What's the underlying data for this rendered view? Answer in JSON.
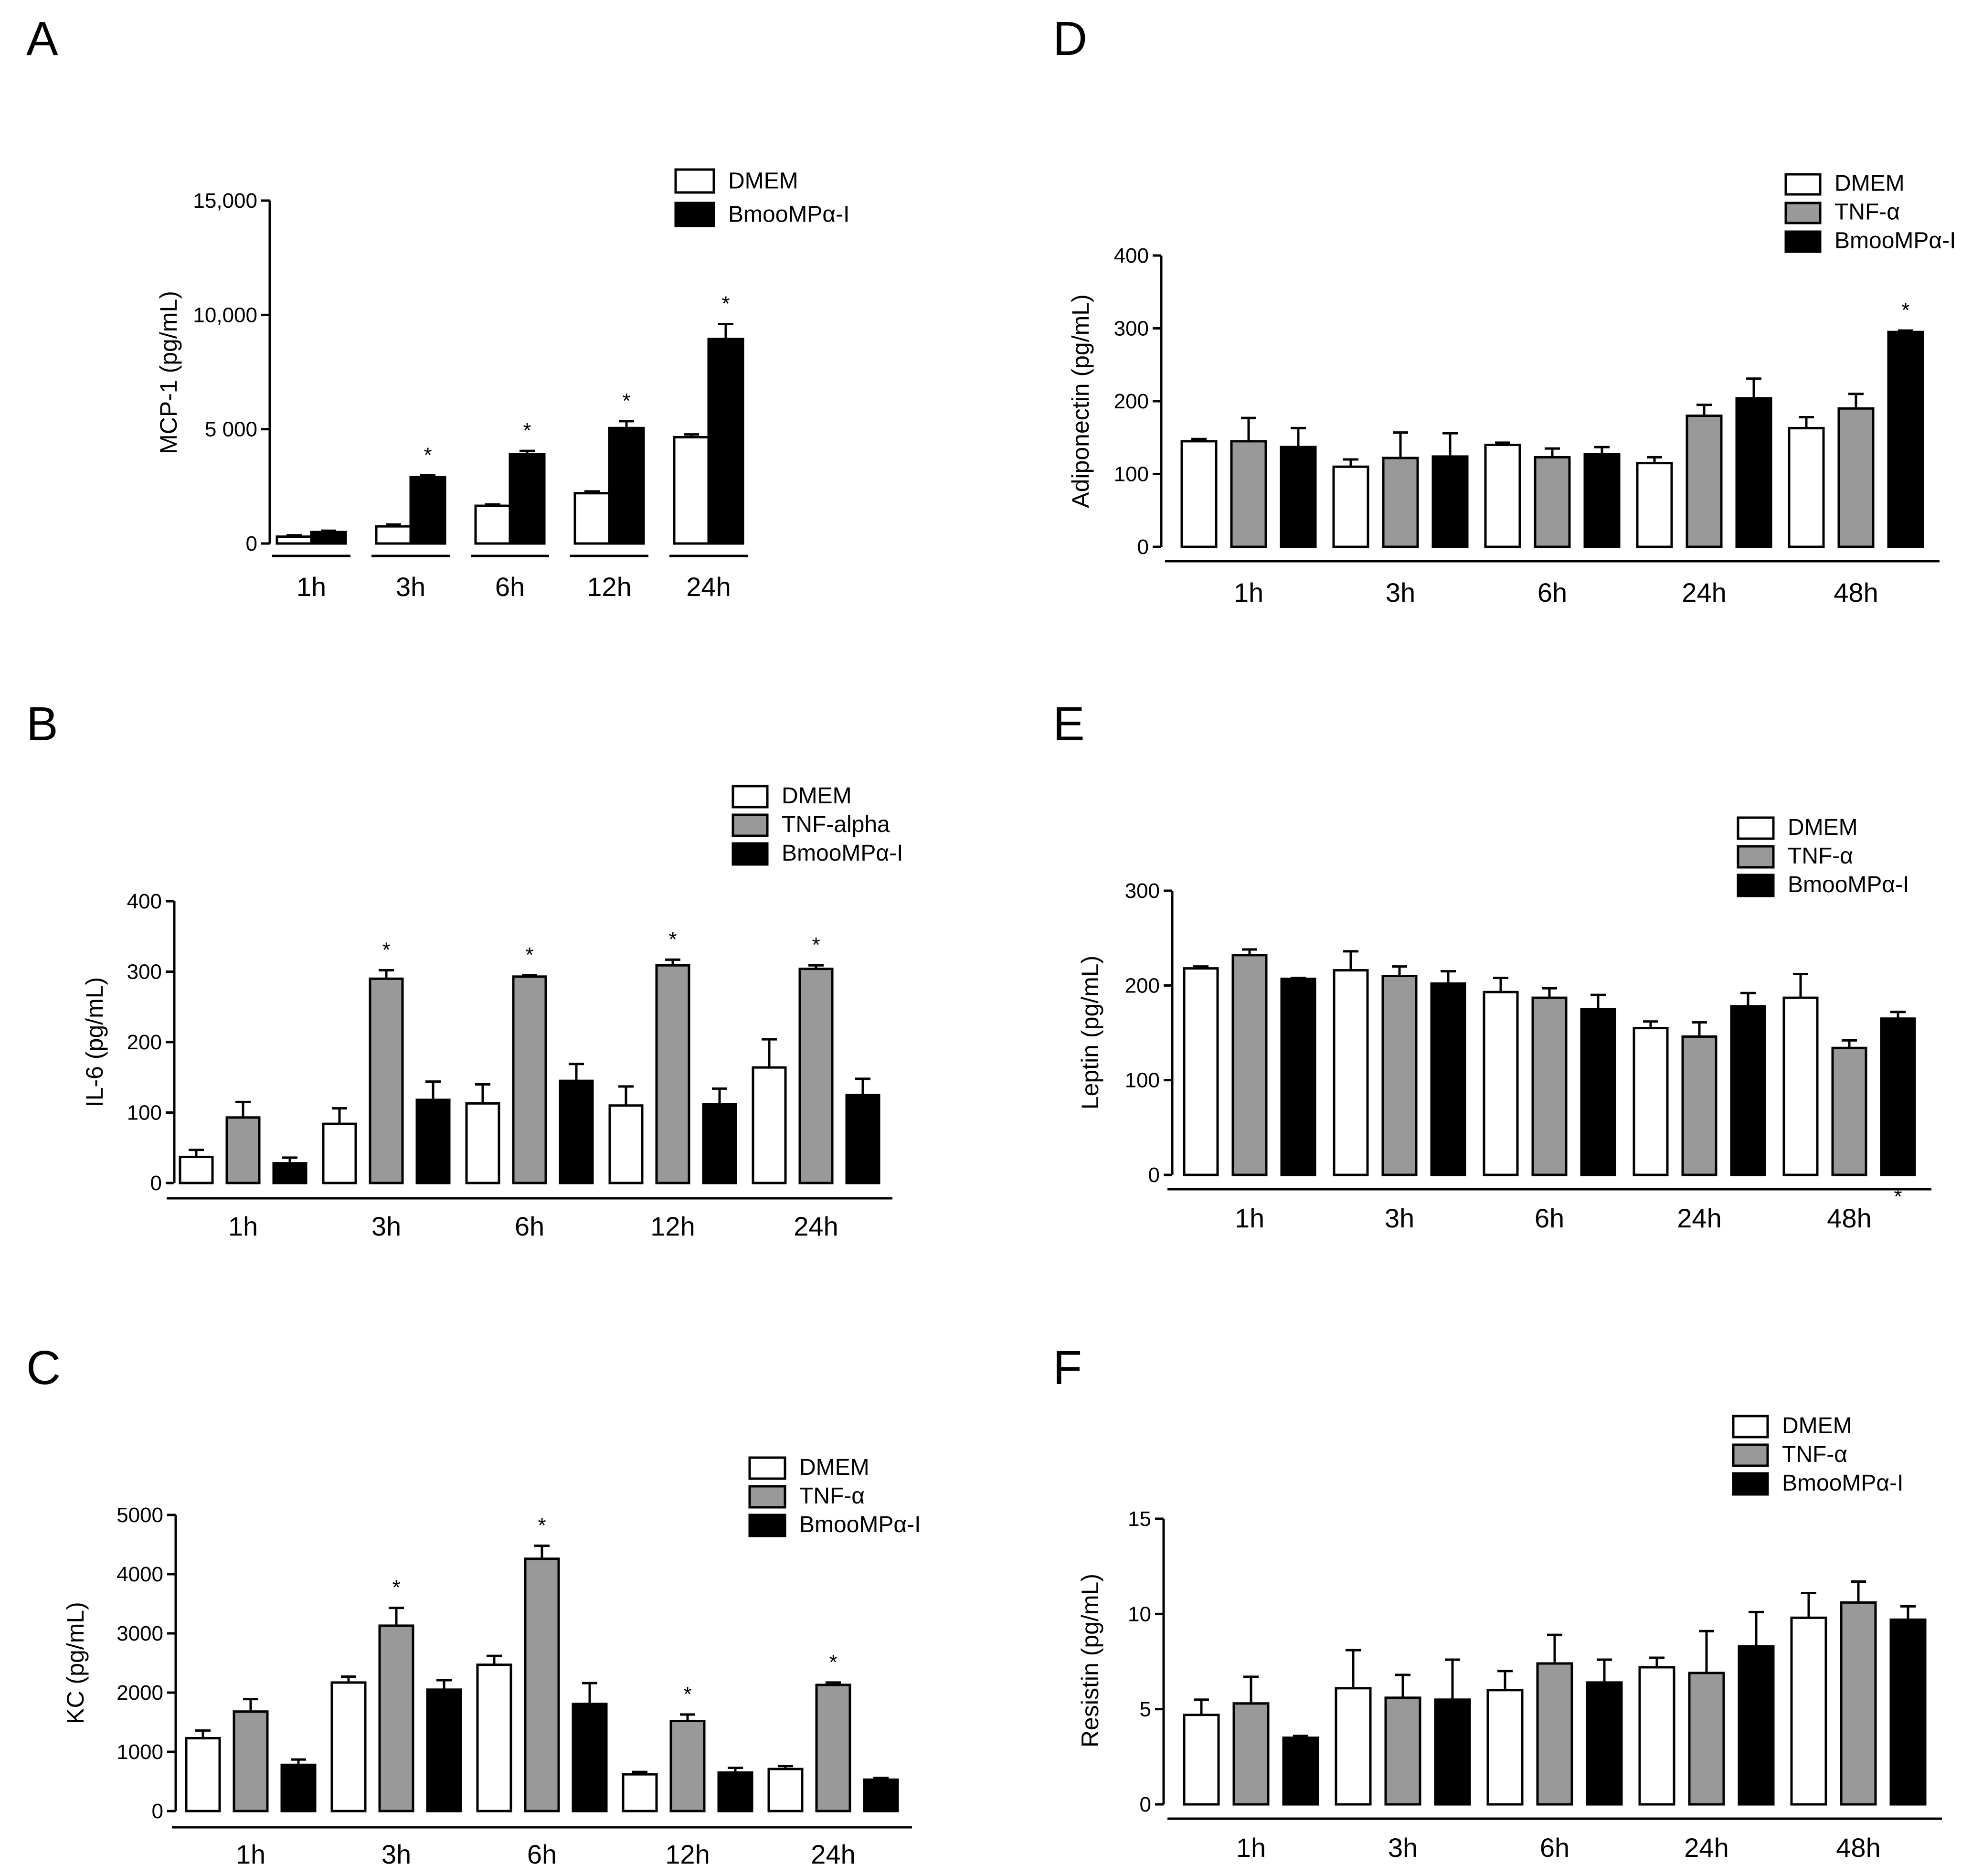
{
  "figure": {
    "colors": {
      "DMEM": "#ffffff",
      "TNF": "#999999",
      "BMOO": "#000000",
      "axis": "#000000"
    }
  },
  "chart_data": [
    {
      "panel": "A",
      "type": "bar",
      "title": "",
      "ylabel": "MCP-1 (pg/mL)",
      "xlabel": "",
      "ylim": [
        0,
        15000
      ],
      "yticks": [
        0,
        5000,
        10000,
        15000
      ],
      "ytick_labels": [
        "0",
        "5 000",
        "10,000",
        "15,000"
      ],
      "categories": [
        "1h",
        "3h",
        "6h",
        "12h",
        "24h"
      ],
      "series": [
        {
          "name": "DMEM",
          "key": "DMEM",
          "values": [
            300,
            750,
            1650,
            2200,
            4650
          ],
          "errors": [
            60,
            80,
            60,
            80,
            120
          ]
        },
        {
          "name": "BmooMPα-I",
          "key": "BMOO",
          "values": [
            500,
            2900,
            3900,
            5050,
            8950
          ],
          "errors": [
            60,
            80,
            150,
            300,
            650
          ]
        }
      ],
      "stars": [
        [
          1,
          1
        ],
        [
          1,
          2
        ],
        [
          1,
          3
        ],
        [
          1,
          4
        ]
      ],
      "legend": [
        "DMEM",
        "BmooMPα-I"
      ]
    },
    {
      "panel": "B",
      "type": "bar",
      "title": "",
      "ylabel": "IL-6 (pg/mL)",
      "xlabel": "",
      "ylim": [
        0,
        400
      ],
      "yticks": [
        0,
        100,
        200,
        300,
        400
      ],
      "ytick_labels": [
        "0",
        "100",
        "200",
        "300",
        "400"
      ],
      "categories": [
        "1h",
        "3h",
        "6h",
        "12h",
        "24h"
      ],
      "series": [
        {
          "name": "DMEM",
          "key": "DMEM",
          "values": [
            37,
            84,
            113,
            110,
            164
          ],
          "errors": [
            10,
            22,
            27,
            27,
            40
          ]
        },
        {
          "name": "TNF-alpha",
          "key": "TNF",
          "values": [
            93,
            290,
            293,
            309,
            304
          ],
          "errors": [
            22,
            12,
            2,
            8,
            5
          ]
        },
        {
          "name": "BmooMPα-I",
          "key": "BMOO",
          "values": [
            28,
            118,
            145,
            112,
            125
          ],
          "errors": [
            8,
            26,
            24,
            22,
            23
          ]
        }
      ],
      "stars": [
        [
          1,
          1
        ],
        [
          1,
          2
        ],
        [
          1,
          3
        ],
        [
          1,
          4
        ]
      ],
      "legend": [
        "DMEM",
        "TNF-alpha",
        "BmooMPα-I"
      ]
    },
    {
      "panel": "C",
      "type": "bar",
      "title": "",
      "ylabel": "KC (pg/mL)",
      "xlabel": "",
      "ylim": [
        0,
        5000
      ],
      "yticks": [
        0,
        1000,
        2000,
        3000,
        4000,
        5000
      ],
      "ytick_labels": [
        "0",
        "1000",
        "2000",
        "3000",
        "4000",
        "5000"
      ],
      "categories": [
        "1h",
        "3h",
        "6h",
        "12h",
        "24h"
      ],
      "series": [
        {
          "name": "DMEM",
          "key": "DMEM",
          "values": [
            1230,
            2170,
            2470,
            620,
            710
          ],
          "errors": [
            130,
            100,
            150,
            40,
            50
          ]
        },
        {
          "name": "TNF-α",
          "key": "TNF",
          "values": [
            1680,
            3130,
            4260,
            1520,
            2130
          ],
          "errors": [
            210,
            300,
            220,
            110,
            40
          ]
        },
        {
          "name": "BmooMPα-I",
          "key": "BMOO",
          "values": [
            780,
            2050,
            1810,
            650,
            530
          ],
          "errors": [
            90,
            160,
            350,
            80,
            30
          ]
        }
      ],
      "stars": [
        [
          1,
          1
        ],
        [
          1,
          2
        ],
        [
          1,
          3
        ],
        [
          1,
          4
        ]
      ],
      "legend": [
        "DMEM",
        "TNF-α",
        "BmooMPα-I"
      ]
    },
    {
      "panel": "D",
      "type": "bar",
      "title": "",
      "ylabel": "Adiponectin (pg/mL)",
      "xlabel": "",
      "ylim": [
        0,
        400
      ],
      "yticks": [
        0,
        100,
        200,
        300,
        400
      ],
      "ytick_labels": [
        "0",
        "100",
        "200",
        "300",
        "400"
      ],
      "categories": [
        "1h",
        "3h",
        "6h",
        "24h",
        "48h"
      ],
      "series": [
        {
          "name": "DMEM",
          "key": "DMEM",
          "values": [
            145,
            110,
            140,
            115,
            163
          ],
          "errors": [
            3,
            10,
            3,
            8,
            15
          ]
        },
        {
          "name": "TNF-α",
          "key": "TNF",
          "values": [
            145,
            122,
            123,
            180,
            190
          ],
          "errors": [
            32,
            35,
            12,
            15,
            20
          ]
        },
        {
          "name": "BmooMPα-I",
          "key": "BMOO",
          "values": [
            137,
            124,
            127,
            204,
            295
          ],
          "errors": [
            26,
            32,
            10,
            27,
            2
          ]
        }
      ],
      "stars": [
        [
          2,
          4
        ]
      ],
      "legend": [
        "DMEM",
        "TNF-α",
        "BmooMPα-I"
      ]
    },
    {
      "panel": "E",
      "type": "bar",
      "title": "",
      "ylabel": "Leptin (pg/mL)",
      "xlabel": "",
      "ylim": [
        0,
        300
      ],
      "yticks": [
        0,
        100,
        200,
        300
      ],
      "ytick_labels": [
        "0",
        "100",
        "200",
        "300"
      ],
      "categories": [
        "1h",
        "3h",
        "6h",
        "24h",
        "48h"
      ],
      "series": [
        {
          "name": "DMEM",
          "key": "DMEM",
          "values": [
            218,
            216,
            193,
            155,
            187
          ],
          "errors": [
            2,
            20,
            15,
            7,
            25
          ]
        },
        {
          "name": "TNF-α",
          "key": "TNF",
          "values": [
            232,
            210,
            187,
            146,
            134
          ],
          "errors": [
            6,
            10,
            10,
            15,
            8
          ]
        },
        {
          "name": "BmooMPα-I",
          "key": "BMOO",
          "values": [
            207,
            202,
            175,
            178,
            165
          ],
          "errors": [
            1,
            13,
            15,
            14,
            7
          ]
        }
      ],
      "stars": [
        [
          2,
          4
        ]
      ],
      "star_position": "below",
      "legend": [
        "DMEM",
        "TNF-α",
        "BmooMPα-I"
      ]
    },
    {
      "panel": "F",
      "type": "bar",
      "title": "",
      "ylabel": "Resistin (pg/mL)",
      "xlabel": "",
      "ylim": [
        0,
        15
      ],
      "yticks": [
        0,
        5,
        10,
        15
      ],
      "ytick_labels": [
        "0",
        "5",
        "10",
        "15"
      ],
      "categories": [
        "1h",
        "3h",
        "6h",
        "24h",
        "48h"
      ],
      "series": [
        {
          "name": "DMEM",
          "key": "DMEM",
          "values": [
            4.7,
            6.1,
            6.0,
            7.2,
            9.8
          ],
          "errors": [
            0.8,
            2.0,
            1.0,
            0.5,
            1.3
          ]
        },
        {
          "name": "TNF-α",
          "key": "TNF",
          "values": [
            5.3,
            5.6,
            7.4,
            6.9,
            10.6
          ],
          "errors": [
            1.4,
            1.2,
            1.5,
            2.2,
            1.1
          ]
        },
        {
          "name": "BmooMPα-I",
          "key": "BMOO",
          "values": [
            3.5,
            5.5,
            6.4,
            8.3,
            9.7
          ],
          "errors": [
            0.1,
            2.1,
            1.2,
            1.8,
            0.7
          ]
        }
      ],
      "stars": [],
      "legend": [
        "DMEM",
        "TNF-α",
        "BmooMPα-I"
      ]
    }
  ]
}
